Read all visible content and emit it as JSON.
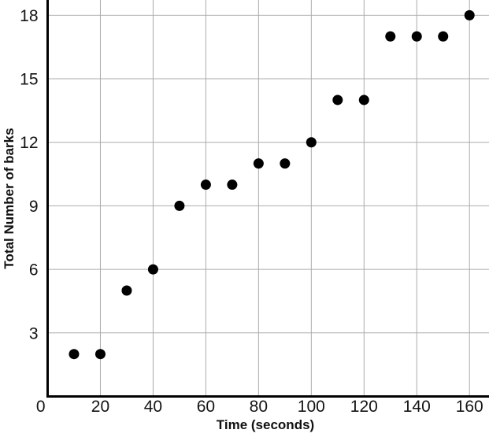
{
  "chart_data": {
    "type": "scatter",
    "title": "",
    "xlabel": "Time (seconds)",
    "ylabel": "Total Number of barks",
    "points": [
      [
        10,
        2
      ],
      [
        20,
        2
      ],
      [
        30,
        5
      ],
      [
        40,
        6
      ],
      [
        50,
        9
      ],
      [
        60,
        10
      ],
      [
        70,
        10
      ],
      [
        80,
        11
      ],
      [
        90,
        11
      ],
      [
        100,
        12
      ],
      [
        110,
        14
      ],
      [
        120,
        14
      ],
      [
        130,
        17
      ],
      [
        140,
        17
      ],
      [
        150,
        17
      ],
      [
        160,
        18
      ]
    ],
    "xticks": [
      0,
      20,
      40,
      60,
      80,
      100,
      120,
      140,
      160
    ],
    "yticks": [
      0,
      3,
      6,
      9,
      12,
      15,
      18
    ],
    "xlim": [
      0,
      167.4
    ],
    "ylim": [
      0,
      18.72
    ],
    "origin_label": "0",
    "grid": true,
    "legend": "none",
    "marker": "filled-circle",
    "colors": {
      "dot": "#000000",
      "grid": "#ababab",
      "axis": "#000000",
      "text": "#141414"
    }
  }
}
